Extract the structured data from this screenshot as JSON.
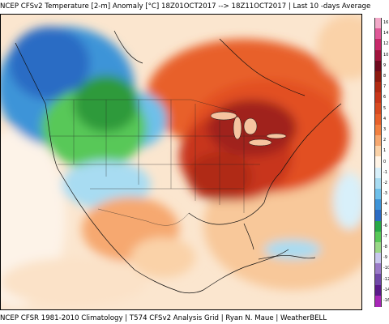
{
  "header": {
    "title": "NCEP CFSv2 Temperature [2-m] Anomaly  [°C] 18Z01OCT2017 --> 18Z11OCT2017 | Last 10 -days Average"
  },
  "footer": {
    "credit": "NCEP CFSR 1981-2010 Climatology | T574 CFSv2 Analysis Grid | Ryan N. Maue | WeatherBELL"
  },
  "colorbar": {
    "labels": [
      "16",
      "14",
      "12",
      "10",
      "9",
      "8",
      "7",
      "6",
      "5",
      "4",
      "3",
      "2",
      "1",
      "0",
      "-1",
      "-2",
      "-3",
      "-4",
      "-5",
      "-6",
      "-7",
      "-8",
      "-9",
      "-10",
      "-12",
      "-14",
      "-16"
    ],
    "colors": [
      "#f2a8c8",
      "#e05898",
      "#c8286a",
      "#a0143c",
      "#6e0a1e",
      "#8c1a10",
      "#b02a12",
      "#c8361a",
      "#d84a20",
      "#e8602a",
      "#f28040",
      "#f6a870",
      "#fad2a8",
      "#fff4e6",
      "#d8f0fa",
      "#a8dcf2",
      "#6ec0ea",
      "#3e94d8",
      "#2c6cc4",
      "#28a848",
      "#58c858",
      "#9ad888",
      "#c8c8ee",
      "#9a7ac8",
      "#7048a8",
      "#5a1a8a",
      "#a828b8"
    ]
  },
  "map": {
    "ocean_color": "#fdeedd",
    "warm_core": "#b82a0e",
    "cold_core": "#2e9a3a"
  }
}
